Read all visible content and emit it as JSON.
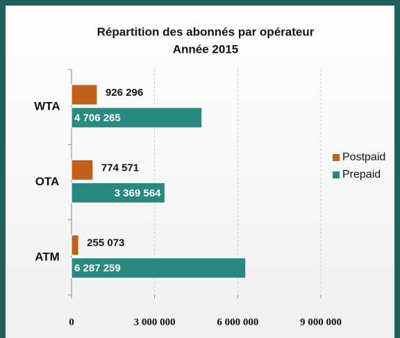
{
  "chart_data": {
    "type": "bar",
    "orientation": "horizontal",
    "title": "Répartition des abonnés par opérateur",
    "subtitle": "Année  2015",
    "categories": [
      "WTA",
      "OTA",
      "ATM"
    ],
    "series": [
      {
        "name": "Postpaid",
        "color": "#c0601c",
        "values": [
          926296,
          774571,
          255073
        ],
        "value_labels": [
          "926 296",
          "774 571",
          "255 073"
        ]
      },
      {
        "name": "Prepaid",
        "color": "#2a8a80",
        "values": [
          4706265,
          3369564,
          6287259
        ],
        "value_labels": [
          "4 706 265",
          "3 369 564",
          "6 287 259"
        ]
      }
    ],
    "xlim": [
      0,
      9000000
    ],
    "xticks": [
      0,
      {
        "value": 3000000,
        "label": "3 000 000"
      },
      {
        "value": 6000000,
        "label": "6 000 000"
      },
      {
        "value": 9000000,
        "label": "9 000 000"
      }
    ],
    "grid": true,
    "legend": "right"
  }
}
